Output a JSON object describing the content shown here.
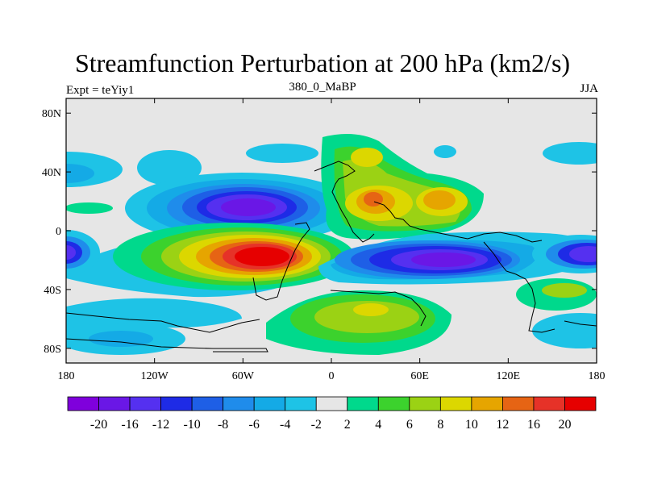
{
  "title": "Streamfunction Perturbation at 200 hPa (km2/s)",
  "left_label": "Expt = teYiy1",
  "center_label": "380_0_MaBP",
  "right_label": "JJA",
  "lat_ticks": [
    "80N",
    "40N",
    "0",
    "40S",
    "80S"
  ],
  "lon_ticks": [
    "180",
    "120W",
    "60W",
    "0",
    "60E",
    "120E",
    "180"
  ],
  "colorbar": {
    "labels": [
      "-20",
      "-16",
      "-12",
      "-10",
      "-8",
      "-6",
      "-4",
      "-2",
      "2",
      "4",
      "6",
      "8",
      "10",
      "12",
      "16",
      "20"
    ],
    "colors": [
      "#7f00dc",
      "#6a17e6",
      "#5530f0",
      "#1e2be6",
      "#1e5fe6",
      "#1f8ceb",
      "#14aae6",
      "#1ec3e6",
      "#e6e6e6",
      "#00d98c",
      "#3cd22d",
      "#9bd214",
      "#dcd700",
      "#e6a500",
      "#e66414",
      "#e63228",
      "#e60000"
    ]
  },
  "map_data": {
    "projection": "cylindrical-equidistant",
    "lon_range": [
      -180,
      180
    ],
    "lat_range": [
      -90,
      90
    ],
    "variable": "streamfunction perturbation",
    "level": "200 hPa",
    "units": "km2/s",
    "season": "JJA",
    "features": [
      {
        "feature": "negative center",
        "lon": -70,
        "lat": 15,
        "value": -16
      },
      {
        "feature": "positive center",
        "lon": -50,
        "lat": -17,
        "value": 20
      },
      {
        "feature": "positive center",
        "lon": 30,
        "lat": 20,
        "value": 12
      },
      {
        "feature": "positive center",
        "lon": 70,
        "lat": 20,
        "value": 10
      },
      {
        "feature": "negative band",
        "lon": 80,
        "lat": -20,
        "value": -16
      },
      {
        "feature": "negative center",
        "lon": 165,
        "lat": -15,
        "value": -12
      },
      {
        "feature": "negative center",
        "lon": -180,
        "lat": -15,
        "value": -12
      },
      {
        "feature": "positive center",
        "lon": 20,
        "lat": -55,
        "value": 8
      }
    ]
  }
}
